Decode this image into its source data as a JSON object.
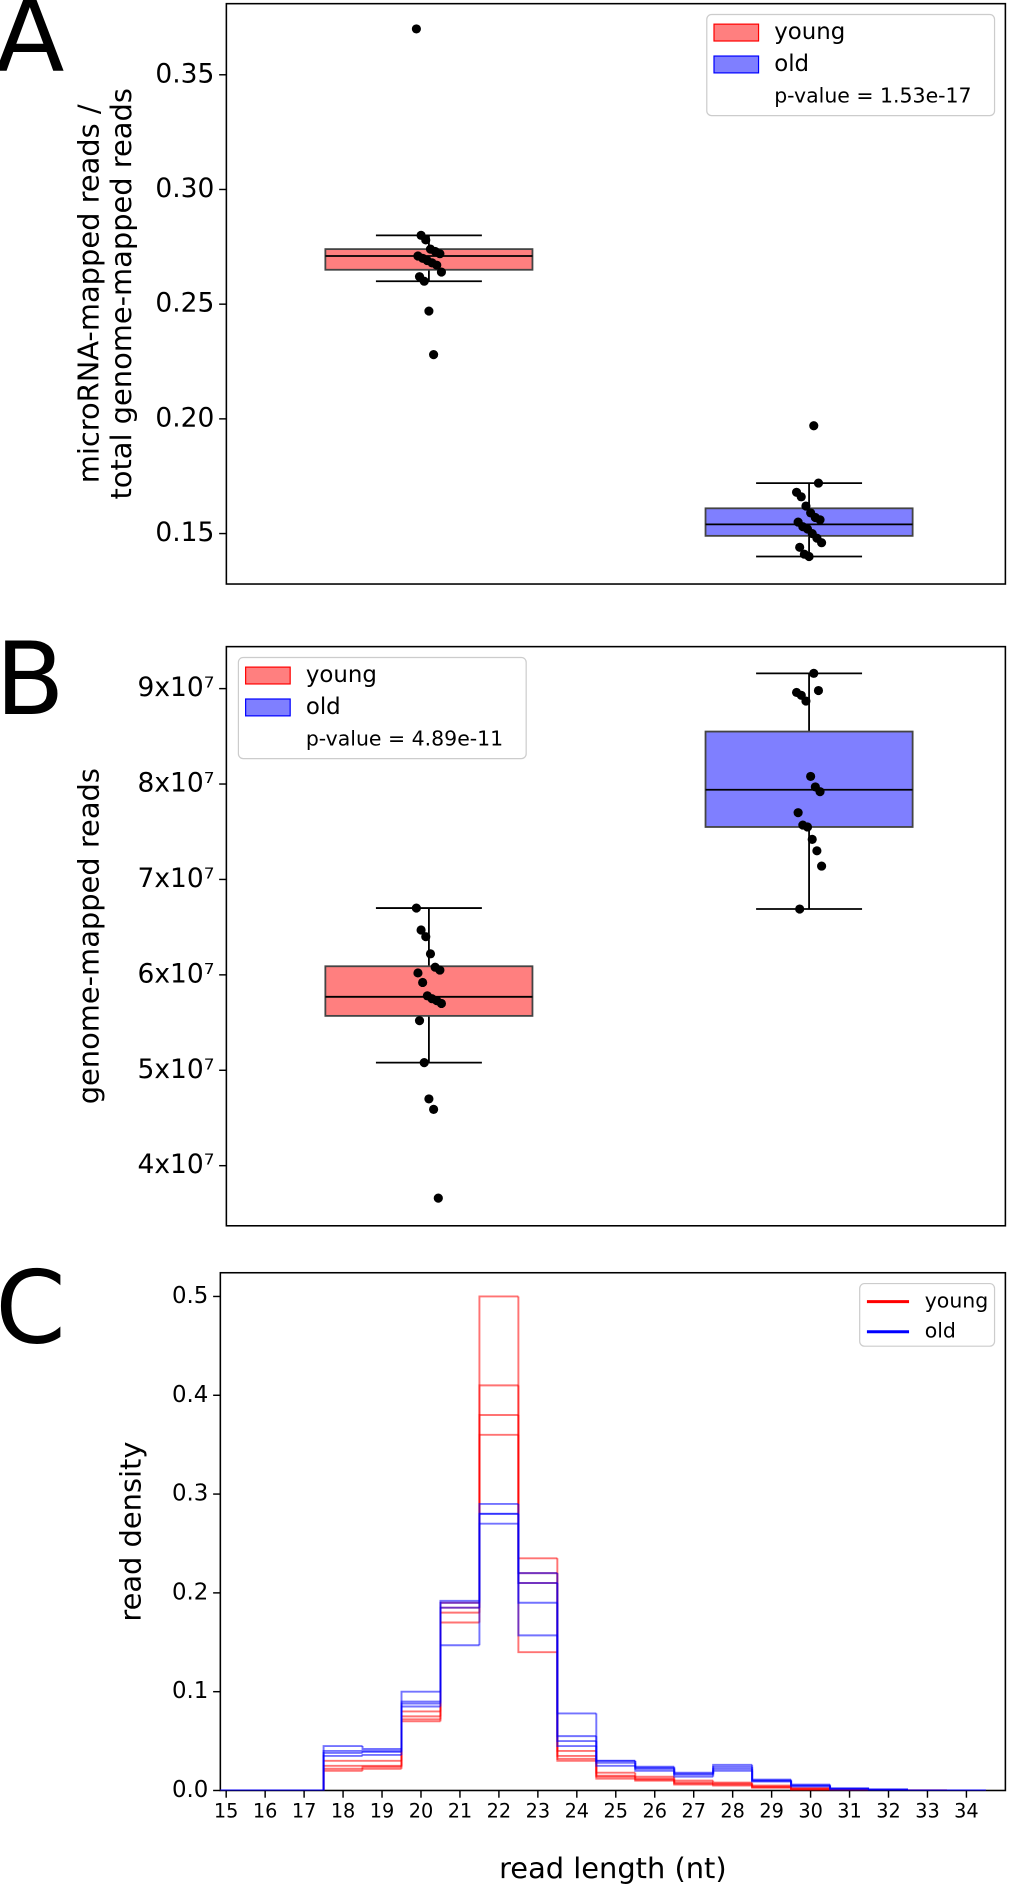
{
  "chart_data": [
    {
      "type": "box",
      "panel": "A",
      "ylabel": [
        "microRNA-mapped reads /",
        "total genome-mapped reads"
      ],
      "ylim": [
        0.128,
        0.381
      ],
      "yticks": [
        0.15,
        {
          "value": 0.2,
          "label": "0.20"
        },
        0.25,
        {
          "value": 0.3,
          "label": "0.30"
        },
        0.35
      ],
      "legend": "upper right",
      "annotation": "p-value = 1.53e-17",
      "groups": [
        {
          "name": "young",
          "color": "#ff0000",
          "whisker_low": 0.26,
          "q1": 0.265,
          "median": 0.271,
          "q3": 0.274,
          "whisker_high": 0.28,
          "points": [
            0.37,
            0.28,
            0.278,
            0.274,
            0.273,
            0.272,
            0.271,
            0.27,
            0.269,
            0.268,
            0.267,
            0.264,
            0.262,
            0.26,
            0.247,
            0.228
          ]
        },
        {
          "name": "old",
          "color": "#0000ff",
          "whisker_low": 0.14,
          "q1": 0.149,
          "median": 0.154,
          "q3": 0.161,
          "whisker_high": 0.172,
          "points": [
            0.197,
            0.172,
            0.168,
            0.166,
            0.162,
            0.159,
            0.157,
            0.156,
            0.155,
            0.153,
            0.152,
            0.15,
            0.148,
            0.146,
            0.144,
            0.141,
            0.14
          ]
        }
      ]
    },
    {
      "type": "box",
      "panel": "B",
      "ylabel": [
        "genome-mapped reads"
      ],
      "ylim": [
        33700000,
        94400000
      ],
      "yticks": [
        {
          "value": 40000000,
          "label": "4x10⁷"
        },
        {
          "value": 50000000,
          "label": "5x10⁷"
        },
        {
          "value": 60000000,
          "label": "6x10⁷"
        },
        {
          "value": 70000000,
          "label": "7x10⁷"
        },
        {
          "value": 80000000,
          "label": "8x10⁷"
        },
        {
          "value": 90000000,
          "label": "9x10⁷"
        }
      ],
      "legend": "upper left",
      "annotation": "p-value = 4.89e-11",
      "groups": [
        {
          "name": "young",
          "color": "#ff0000",
          "whisker_low": 50800000,
          "q1": 55700000,
          "median": 57700000,
          "q3": 60900000,
          "whisker_high": 67000000,
          "points": [
            67000000,
            64700000,
            64000000,
            62200000,
            60800000,
            60500000,
            60200000,
            59200000,
            57800000,
            57500000,
            57300000,
            57000000,
            55200000,
            50800000,
            47000000,
            45900000,
            36600000
          ]
        },
        {
          "name": "old",
          "color": "#0000ff",
          "whisker_low": 66900000,
          "q1": 75500000,
          "median": 79400000,
          "q3": 85500000,
          "whisker_high": 91600000,
          "points": [
            91600000,
            89800000,
            89600000,
            89300000,
            88700000,
            80800000,
            79700000,
            79200000,
            77000000,
            75700000,
            75500000,
            74200000,
            73000000,
            71400000,
            66900000
          ]
        }
      ]
    },
    {
      "type": "step-histogram",
      "panel": "C",
      "xlabel": "read length (nt)",
      "ylabel": [
        "read density"
      ],
      "xlim": [
        14.85,
        35.0
      ],
      "ylim": [
        0,
        0.524
      ],
      "xticks": [
        15,
        16,
        17,
        18,
        19,
        20,
        21,
        22,
        23,
        24,
        25,
        26,
        27,
        28,
        29,
        30,
        31,
        32,
        33,
        34
      ],
      "yticks": [
        {
          "value": 0,
          "label": "0.0"
        },
        0.1,
        0.2,
        0.3,
        0.4,
        0.5
      ],
      "legend": "upper right",
      "bins": [
        14.5,
        15.5,
        16.5,
        17.5,
        18.5,
        19.5,
        20.5,
        21.5,
        22.5,
        23.5,
        24.5,
        25.5,
        26.5,
        27.5,
        28.5,
        29.5,
        30.5,
        31.5,
        32.5,
        33.5,
        34.5
      ],
      "groups": [
        {
          "name": "young",
          "color": "#ff0000",
          "series": [
            [
              0,
              0,
              0,
              0.025,
              0.025,
              0.075,
              0.185,
              0.38,
              0.22,
              0.035,
              0.015,
              0.012,
              0.008,
              0.007,
              0.004,
              0.002,
              0.001,
              0.0005,
              0.0003,
              0
            ],
            [
              0,
              0,
              0,
              0.02,
              0.022,
              0.07,
              0.18,
              0.41,
              0.235,
              0.03,
              0.012,
              0.01,
              0.006,
              0.005,
              0.003,
              0.001,
              0.0005,
              0,
              0,
              0
            ],
            [
              0,
              0,
              0,
              0.03,
              0.03,
              0.08,
              0.19,
              0.36,
              0.21,
              0.04,
              0.018,
              0.014,
              0.01,
              0.008,
              0.005,
              0.002,
              0.001,
              0.0005,
              0,
              0
            ],
            [
              0,
              0,
              0,
              0.022,
              0.024,
              0.072,
              0.17,
              0.5,
              0.14,
              0.032,
              0.014,
              0.011,
              0.007,
              0.006,
              0.003,
              0.001,
              0.0005,
              0,
              0,
              0
            ]
          ]
        },
        {
          "name": "old",
          "color": "#0000ff",
          "series": [
            [
              0,
              0,
              0,
              0.04,
              0.04,
              0.09,
              0.19,
              0.28,
              0.21,
              0.05,
              0.028,
              0.022,
              0.016,
              0.022,
              0.01,
              0.005,
              0.002,
              0.001,
              0,
              0
            ],
            [
              0,
              0,
              0,
              0.045,
              0.042,
              0.1,
              0.192,
              0.29,
              0.22,
              0.055,
              0.03,
              0.024,
              0.018,
              0.026,
              0.011,
              0.006,
              0.002,
              0.001,
              0,
              0
            ],
            [
              0,
              0,
              0,
              0.035,
              0.036,
              0.085,
              0.185,
              0.27,
              0.19,
              0.045,
              0.025,
              0.02,
              0.014,
              0.02,
              0.009,
              0.004,
              0.001,
              0,
              0,
              0
            ],
            [
              0,
              0,
              0,
              0.038,
              0.039,
              0.088,
              0.147,
              0.28,
              0.157,
              0.078,
              0.03,
              0.023,
              0.017,
              0.024,
              0.01,
              0.005,
              0.002,
              0.001,
              0,
              0
            ]
          ]
        }
      ]
    }
  ]
}
